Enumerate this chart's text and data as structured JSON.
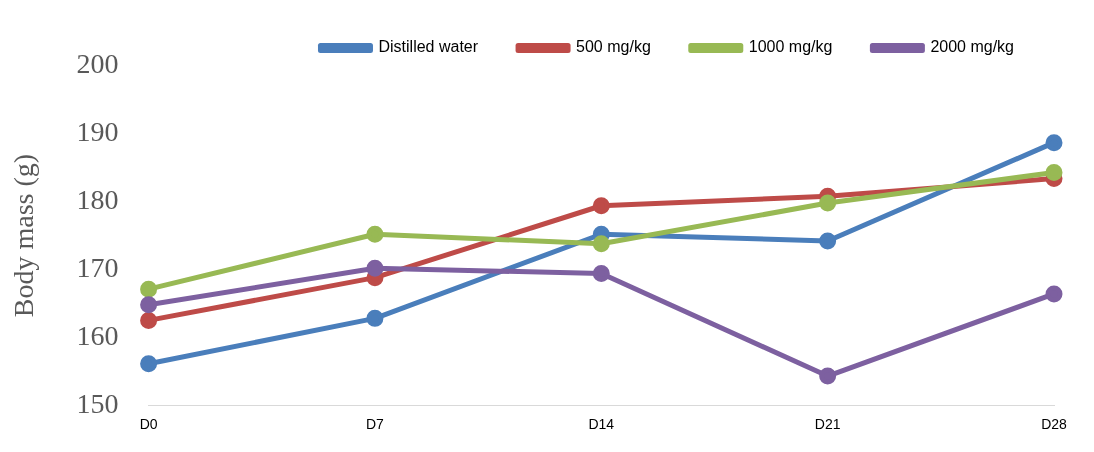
{
  "chart_data": {
    "type": "line",
    "ylabel": "Body mass (g)",
    "categories": [
      "D0",
      "D7",
      "D14",
      "D21",
      "D28"
    ],
    "series": [
      {
        "name": "Distilled water",
        "color": "#4a7ebb",
        "values": [
          156.1,
          162.8,
          175.2,
          174.2,
          188.7
        ]
      },
      {
        "name": "500 mg/kg",
        "color": "#be4b48",
        "values": [
          162.5,
          168.8,
          179.4,
          180.8,
          183.4
        ]
      },
      {
        "name": "1000 mg/kg",
        "color": "#98b954",
        "values": [
          167.1,
          175.2,
          173.8,
          179.8,
          184.3
        ]
      },
      {
        "name": "2000 mg/kg",
        "color": "#7d60a0",
        "values": [
          164.8,
          170.2,
          169.4,
          154.3,
          166.4
        ]
      }
    ],
    "ylim": [
      150,
      200
    ],
    "yticks": [
      150,
      160,
      170,
      180,
      190,
      200
    ],
    "grid": false,
    "legend": "top",
    "marker": "circle",
    "line_style": "solid"
  }
}
